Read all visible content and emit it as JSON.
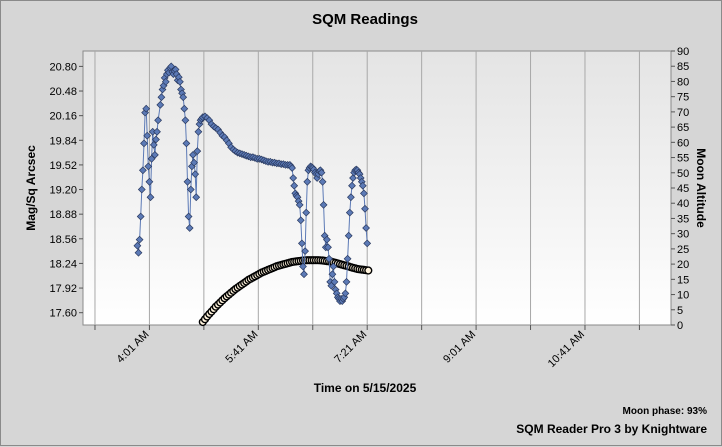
{
  "chart_data": {
    "type": "scatter",
    "title": "SQM Readings",
    "xlabel": "Time on 5/15/2025",
    "ylabel": "Mag/Sq Arcsec",
    "y2label": "Moon Altitude",
    "x_tick_labels": [
      "4:01 AM",
      "5:41 AM",
      "7:21 AM",
      "9:01 AM",
      "10:41 AM"
    ],
    "x_range_minutes": [
      180,
      720
    ],
    "x_ticks_minutes": [
      241,
      341,
      441,
      541,
      641
    ],
    "x_gridlines_minutes": [
      191,
      241,
      291,
      341,
      391,
      441,
      491,
      541,
      591,
      641,
      691
    ],
    "ylim": [
      17.44,
      21.0
    ],
    "y_ticks": [
      17.6,
      17.92,
      18.24,
      18.56,
      18.88,
      19.2,
      19.52,
      19.84,
      20.16,
      20.48,
      20.8
    ],
    "y2lim": [
      0,
      90
    ],
    "y2_ticks": [
      0,
      5,
      10,
      15,
      20,
      25,
      30,
      35,
      40,
      45,
      50,
      55,
      60,
      65,
      70,
      75,
      80,
      85,
      90
    ],
    "grid": true,
    "series": [
      {
        "name": "SQM",
        "color": "#5c7ab6",
        "marker": "diamond",
        "points": [
          [
            230,
            18.47
          ],
          [
            231,
            18.38
          ],
          [
            232,
            18.55
          ],
          [
            233,
            18.85
          ],
          [
            234,
            19.2
          ],
          [
            235,
            19.45
          ],
          [
            236,
            19.8
          ],
          [
            237,
            20.2
          ],
          [
            238,
            20.25
          ],
          [
            239,
            19.9
          ],
          [
            240,
            19.5
          ],
          [
            241,
            19.3
          ],
          [
            242,
            19.1
          ],
          [
            243,
            19.6
          ],
          [
            244,
            19.95
          ],
          [
            245,
            19.78
          ],
          [
            246,
            19.65
          ],
          [
            247,
            19.85
          ],
          [
            248,
            19.95
          ],
          [
            249,
            20.1
          ],
          [
            251,
            20.3
          ],
          [
            252,
            20.4
          ],
          [
            253,
            20.5
          ],
          [
            254,
            20.55
          ],
          [
            255,
            20.65
          ],
          [
            256,
            20.6
          ],
          [
            257,
            20.7
          ],
          [
            258,
            20.75
          ],
          [
            259,
            20.72
          ],
          [
            260,
            20.78
          ],
          [
            261,
            20.8
          ],
          [
            262,
            20.73
          ],
          [
            263,
            20.7
          ],
          [
            264,
            20.74
          ],
          [
            265,
            20.76
          ],
          [
            266,
            20.7
          ],
          [
            267,
            20.62
          ],
          [
            268,
            20.66
          ],
          [
            269,
            20.6
          ],
          [
            270,
            20.5
          ],
          [
            271,
            20.45
          ],
          [
            272,
            20.4
          ],
          [
            273,
            20.25
          ],
          [
            274,
            20.1
          ],
          [
            275,
            19.8
          ],
          [
            276,
            19.3
          ],
          [
            277,
            18.85
          ],
          [
            278,
            18.7
          ],
          [
            279,
            19.2
          ],
          [
            280,
            19.5
          ],
          [
            281,
            19.65
          ],
          [
            282,
            19.55
          ],
          [
            283,
            19.4
          ],
          [
            284,
            19.1
          ],
          [
            285,
            19.7
          ],
          [
            286,
            19.95
          ],
          [
            287,
            20.05
          ],
          [
            288,
            20.1
          ],
          [
            289,
            20.12
          ],
          [
            290,
            20.14
          ],
          [
            292,
            20.15
          ],
          [
            294,
            20.13
          ],
          [
            296,
            20.1
          ],
          [
            298,
            20.05
          ],
          [
            300,
            20.02
          ],
          [
            302,
            20.0
          ],
          [
            304,
            19.98
          ],
          [
            306,
            19.94
          ],
          [
            308,
            19.9
          ],
          [
            310,
            19.88
          ],
          [
            312,
            19.84
          ],
          [
            314,
            19.8
          ],
          [
            316,
            19.75
          ],
          [
            318,
            19.72
          ],
          [
            320,
            19.7
          ],
          [
            322,
            19.68
          ],
          [
            324,
            19.67
          ],
          [
            326,
            19.66
          ],
          [
            328,
            19.65
          ],
          [
            330,
            19.64
          ],
          [
            332,
            19.63
          ],
          [
            334,
            19.62
          ],
          [
            336,
            19.62
          ],
          [
            338,
            19.61
          ],
          [
            340,
            19.6
          ],
          [
            342,
            19.6
          ],
          [
            344,
            19.59
          ],
          [
            346,
            19.58
          ],
          [
            348,
            19.57
          ],
          [
            350,
            19.56
          ],
          [
            352,
            19.56
          ],
          [
            354,
            19.55
          ],
          [
            356,
            19.55
          ],
          [
            358,
            19.54
          ],
          [
            360,
            19.54
          ],
          [
            362,
            19.53
          ],
          [
            364,
            19.53
          ],
          [
            366,
            19.52
          ],
          [
            368,
            19.52
          ],
          [
            370,
            19.52
          ],
          [
            371,
            19.5
          ],
          [
            372,
            19.48
          ],
          [
            373,
            19.35
          ],
          [
            374,
            19.25
          ],
          [
            375,
            19.15
          ],
          [
            376,
            19.12
          ],
          [
            377,
            19.1
          ],
          [
            378,
            19.05
          ],
          [
            379,
            19.0
          ],
          [
            380,
            18.8
          ],
          [
            381,
            18.5
          ],
          [
            382,
            18.2
          ],
          [
            383,
            18.1
          ],
          [
            384,
            18.4
          ],
          [
            385,
            18.9
          ],
          [
            386,
            19.3
          ],
          [
            387,
            19.45
          ],
          [
            388,
            19.48
          ],
          [
            389,
            19.5
          ],
          [
            390,
            19.49
          ],
          [
            391,
            19.48
          ],
          [
            392,
            19.46
          ],
          [
            393,
            19.42
          ],
          [
            394,
            19.4
          ],
          [
            395,
            19.35
          ],
          [
            396,
            19.4
          ],
          [
            397,
            19.44
          ],
          [
            398,
            19.45
          ],
          [
            399,
            19.42
          ],
          [
            400,
            19.3
          ],
          [
            401,
            19.0
          ],
          [
            402,
            18.6
          ],
          [
            403,
            18.45
          ],
          [
            404,
            18.55
          ],
          [
            405,
            18.45
          ],
          [
            406,
            18.3
          ],
          [
            407,
            18.0
          ],
          [
            408,
            17.95
          ],
          [
            409,
            18.1
          ],
          [
            410,
            18.2
          ],
          [
            411,
            18.0
          ],
          [
            412,
            17.9
          ],
          [
            413,
            17.85
          ],
          [
            414,
            17.8
          ],
          [
            415,
            17.78
          ],
          [
            416,
            17.75
          ],
          [
            417,
            17.78
          ],
          [
            418,
            17.75
          ],
          [
            419,
            17.78
          ],
          [
            420,
            17.8
          ],
          [
            421,
            17.85
          ],
          [
            422,
            18.0
          ],
          [
            423,
            18.3
          ],
          [
            424,
            18.6
          ],
          [
            425,
            18.9
          ],
          [
            426,
            19.1
          ],
          [
            427,
            19.25
          ],
          [
            428,
            19.35
          ],
          [
            429,
            19.42
          ],
          [
            430,
            19.45
          ],
          [
            431,
            19.46
          ],
          [
            432,
            19.45
          ],
          [
            433,
            19.42
          ],
          [
            434,
            19.4
          ],
          [
            435,
            19.35
          ],
          [
            436,
            19.3
          ],
          [
            437,
            19.25
          ],
          [
            438,
            19.15
          ],
          [
            439,
            18.95
          ],
          [
            440,
            18.7
          ],
          [
            441,
            18.5
          ]
        ]
      },
      {
        "name": "Moon Altitude",
        "axis": "right",
        "color": "#000000",
        "fill": "#fff3dc",
        "marker": "circle",
        "points": [
          [
            290,
            1.0
          ],
          [
            292,
            1.9
          ],
          [
            294,
            2.8
          ],
          [
            296,
            3.6
          ],
          [
            298,
            4.4
          ],
          [
            300,
            5.2
          ],
          [
            302,
            6.0
          ],
          [
            304,
            6.7
          ],
          [
            306,
            7.4
          ],
          [
            308,
            8.1
          ],
          [
            310,
            8.8
          ],
          [
            312,
            9.4
          ],
          [
            314,
            10.0
          ],
          [
            316,
            10.6
          ],
          [
            318,
            11.2
          ],
          [
            320,
            11.8
          ],
          [
            322,
            12.3
          ],
          [
            324,
            12.8
          ],
          [
            326,
            13.3
          ],
          [
            328,
            13.8
          ],
          [
            330,
            14.3
          ],
          [
            332,
            14.8
          ],
          [
            334,
            15.2
          ],
          [
            336,
            15.6
          ],
          [
            338,
            16.0
          ],
          [
            340,
            16.4
          ],
          [
            342,
            16.8
          ],
          [
            344,
            17.2
          ],
          [
            346,
            17.5
          ],
          [
            348,
            17.8
          ],
          [
            350,
            18.1
          ],
          [
            352,
            18.4
          ],
          [
            354,
            18.7
          ],
          [
            356,
            19.0
          ],
          [
            358,
            19.3
          ],
          [
            360,
            19.5
          ],
          [
            362,
            19.7
          ],
          [
            364,
            19.9
          ],
          [
            366,
            20.1
          ],
          [
            368,
            20.3
          ],
          [
            370,
            20.5
          ],
          [
            372,
            20.7
          ],
          [
            374,
            20.8
          ],
          [
            376,
            20.9
          ],
          [
            378,
            21.0
          ],
          [
            380,
            21.1
          ],
          [
            382,
            21.2
          ],
          [
            384,
            21.25
          ],
          [
            386,
            21.3
          ],
          [
            388,
            21.3
          ],
          [
            390,
            21.3
          ],
          [
            392,
            21.3
          ],
          [
            394,
            21.3
          ],
          [
            396,
            21.3
          ],
          [
            398,
            21.25
          ],
          [
            400,
            21.2
          ],
          [
            402,
            21.1
          ],
          [
            404,
            21.0
          ],
          [
            406,
            20.9
          ],
          [
            408,
            20.8
          ],
          [
            410,
            20.6
          ],
          [
            412,
            20.4
          ],
          [
            414,
            20.2
          ],
          [
            416,
            20.0
          ],
          [
            418,
            19.8
          ],
          [
            420,
            19.6
          ],
          [
            422,
            19.4
          ],
          [
            424,
            19.2
          ],
          [
            426,
            19.0
          ],
          [
            428,
            18.8
          ],
          [
            430,
            18.6
          ],
          [
            432,
            18.4
          ],
          [
            434,
            18.3
          ],
          [
            436,
            18.2
          ],
          [
            438,
            18.1
          ],
          [
            440,
            18.0
          ],
          [
            442,
            17.9
          ]
        ]
      }
    ]
  },
  "footer": {
    "moon_phase": "Moon phase: 93%",
    "app": "SQM Reader Pro 3 by Knightware"
  },
  "colors": {
    "background": "#d6d6d6",
    "plot_gradient_top": "#e4e4e4",
    "plot_gradient_bottom": "#ffffff",
    "grid": "#a8a8a8"
  }
}
